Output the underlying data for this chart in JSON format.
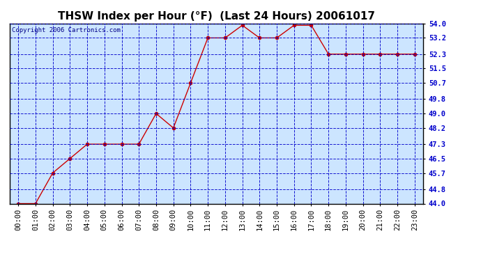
{
  "title": "THSW Index per Hour (°F)  (Last 24 Hours) 20061017",
  "copyright": "Copyright 2006 Cartronics.com",
  "hours": [
    0,
    1,
    2,
    3,
    4,
    5,
    6,
    7,
    8,
    9,
    10,
    11,
    12,
    13,
    14,
    15,
    16,
    17,
    18,
    19,
    20,
    21,
    22,
    23
  ],
  "values": [
    44.0,
    44.0,
    45.7,
    46.5,
    47.3,
    47.3,
    47.3,
    47.3,
    49.0,
    48.2,
    50.7,
    53.2,
    53.2,
    53.9,
    53.2,
    53.2,
    53.9,
    53.9,
    52.3,
    52.3,
    52.3,
    52.3,
    52.3,
    52.3
  ],
  "xlim": [
    -0.5,
    23.5
  ],
  "ylim": [
    44.0,
    54.0
  ],
  "yticks": [
    44.0,
    44.8,
    45.7,
    46.5,
    47.3,
    48.2,
    49.0,
    49.8,
    50.7,
    51.5,
    52.3,
    53.2,
    54.0
  ],
  "line_color": "#cc0000",
  "marker_size": 3,
  "bg_color": "#cce5ff",
  "grid_color": "#0000cc",
  "title_color": "#000000",
  "title_fontsize": 11,
  "axis_label_fontsize": 7.5,
  "copyright_fontsize": 6.5
}
